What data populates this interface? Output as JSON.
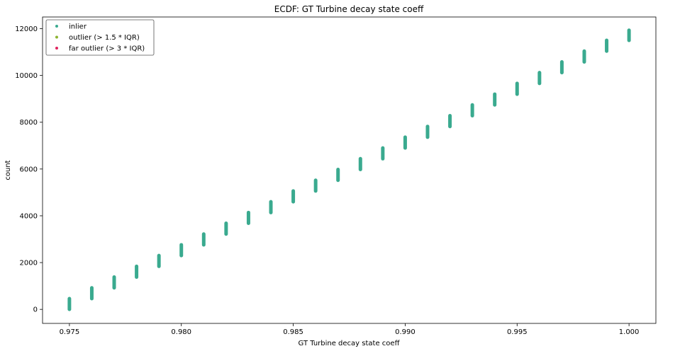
{
  "chart_data": {
    "type": "scatter",
    "title": "ECDF: GT Turbine decay state coeff",
    "xlabel": "GT Turbine decay state coeff",
    "ylabel": "count",
    "xlim": [
      0.9738,
      1.0012
    ],
    "ylim": [
      -600,
      12500
    ],
    "x_ticks": [
      0.975,
      0.98,
      0.985,
      0.99,
      0.995,
      1.0
    ],
    "x_tick_labels": [
      "0.975",
      "0.980",
      "0.985",
      "0.990",
      "0.995",
      "1.000"
    ],
    "y_ticks": [
      0,
      2000,
      4000,
      6000,
      8000,
      10000,
      12000
    ],
    "y_tick_labels": [
      "0",
      "2000",
      "4000",
      "6000",
      "8000",
      "10000",
      "12000"
    ],
    "grid": false,
    "legend_position": "top-left",
    "series": [
      {
        "name": "inlier",
        "color": "#3aaa8f",
        "x": [
          0.975,
          0.976,
          0.977,
          0.978,
          0.979,
          0.98,
          0.981,
          0.982,
          0.983,
          0.984,
          0.985,
          0.986,
          0.987,
          0.988,
          0.989,
          0.99,
          0.991,
          0.992,
          0.993,
          0.994,
          0.995,
          0.996,
          0.997,
          0.998,
          0.999,
          1.0
        ],
        "count_start": [
          0,
          460,
          920,
          1380,
          1840,
          2300,
          2760,
          3220,
          3680,
          4140,
          4600,
          5060,
          5520,
          5980,
          6440,
          6900,
          7360,
          7820,
          8280,
          8740,
          9200,
          9660,
          10120,
          10580,
          11040,
          11500
        ],
        "count_end": [
          460,
          920,
          1380,
          1840,
          2300,
          2760,
          3220,
          3680,
          4140,
          4600,
          5060,
          5520,
          5980,
          6440,
          6900,
          7360,
          7820,
          8280,
          8740,
          9200,
          9660,
          10120,
          10580,
          11040,
          11500,
          11934
        ]
      },
      {
        "name": "outlier (> 1.5 * IQR)",
        "color": "#8db431",
        "x": [],
        "count_start": [],
        "count_end": []
      },
      {
        "name": "far outlier (> 3 * IQR)",
        "color": "#e0245e",
        "x": [],
        "count_start": [],
        "count_end": []
      }
    ]
  }
}
